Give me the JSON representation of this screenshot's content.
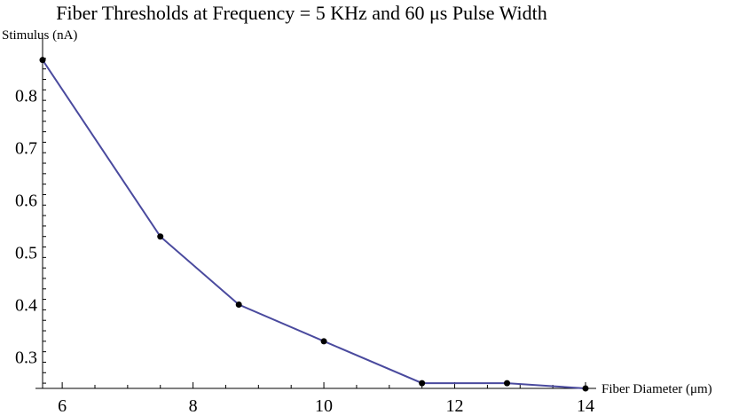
{
  "chart_data": {
    "type": "line",
    "title": "Fiber Thresholds at Frequency = 5 KHz and 60 μs Pulse Width",
    "xlabel": "Fiber Diameter (μm)",
    "ylabel": "Stimulus (nA)",
    "xlim": [
      5.7,
      14
    ],
    "ylim": [
      0.24,
      0.88
    ],
    "x_ticks": [
      6,
      8,
      10,
      12,
      14
    ],
    "y_ticks": [
      0.3,
      0.4,
      0.5,
      0.6,
      0.7,
      0.8
    ],
    "grid": false,
    "series": [
      {
        "x": [
          5.7,
          7.5,
          8.7,
          10.0,
          11.5,
          12.8,
          14.0
        ],
        "y": [
          0.867,
          0.53,
          0.4,
          0.33,
          0.25,
          0.25,
          0.24
        ]
      }
    ],
    "colors": {
      "line": "#4a4a9e",
      "point": "#000000",
      "axis": "#000000"
    }
  }
}
